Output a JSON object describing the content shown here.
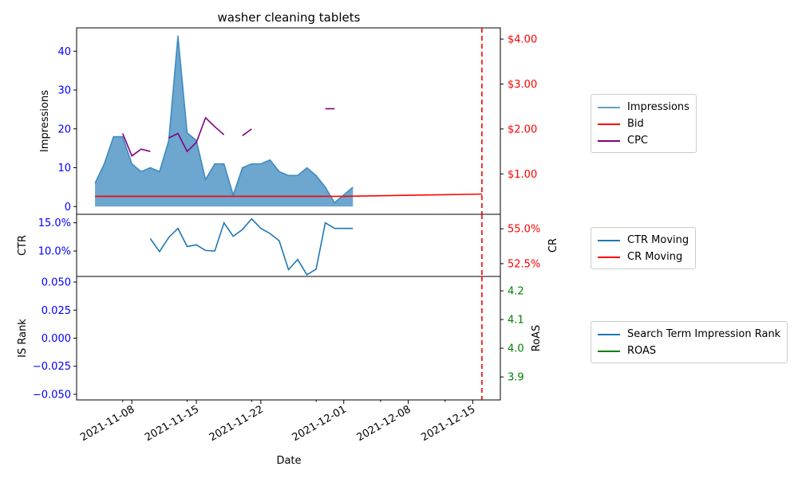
{
  "chart_data": {
    "type": "area",
    "title": "washer cleaning tablets",
    "xlabel": "Date",
    "x_ticks": [
      "2021-11-08",
      "2021-11-15",
      "2021-11-22",
      "2021-12-01",
      "2021-12-08",
      "2021-12-15"
    ],
    "x_range": [
      "2021-11-02",
      "2021-12-18"
    ],
    "vertical_marker_date": "2021-12-16",
    "panels": [
      {
        "ylabel": "Impressions",
        "y2label": "",
        "ylim": [
          -2,
          46
        ],
        "y_ticks": [
          0,
          10,
          20,
          30,
          40
        ],
        "y_tick_labels": [
          "0",
          "10",
          "20",
          "30",
          "40"
        ],
        "y2lim": [
          0.1,
          4.25
        ],
        "y2_ticks": [
          1,
          2,
          3,
          4
        ],
        "y2_tick_labels": [
          "$1.00",
          "$2.00",
          "$3.00",
          "$4.00"
        ],
        "series": [
          {
            "name": "Impressions",
            "kind": "area",
            "axis": "left",
            "color": "#1f77b4",
            "x": [
              "2021-11-04",
              "2021-11-05",
              "2021-11-06",
              "2021-11-07",
              "2021-11-08",
              "2021-11-09",
              "2021-11-10",
              "2021-11-11",
              "2021-11-12",
              "2021-11-13",
              "2021-11-14",
              "2021-11-15",
              "2021-11-16",
              "2021-11-17",
              "2021-11-18",
              "2021-11-19",
              "2021-11-20",
              "2021-11-21",
              "2021-11-22",
              "2021-11-23",
              "2021-11-24",
              "2021-11-25",
              "2021-11-26",
              "2021-11-27",
              "2021-11-28",
              "2021-11-29",
              "2021-11-30",
              "2021-12-01",
              "2021-12-02"
            ],
            "y": [
              6,
              11,
              18,
              18,
              11,
              9,
              10,
              9,
              17,
              44,
              19,
              17,
              7,
              11,
              11,
              3,
              10,
              11,
              11,
              12,
              9,
              8,
              8,
              10,
              8,
              5,
              1,
              3,
              5
            ]
          },
          {
            "name": "Bid",
            "kind": "line",
            "axis": "right",
            "color": "#ff0000",
            "x": [
              "2021-11-04",
              "2021-12-01",
              "2021-12-16"
            ],
            "y": [
              0.5,
              0.5,
              0.55
            ]
          },
          {
            "name": "CPC",
            "kind": "line",
            "axis": "right",
            "color": "#800080",
            "segments": [
              {
                "x": [
                  "2021-11-07",
                  "2021-11-08",
                  "2021-11-09",
                  "2021-11-10"
                ],
                "y": [
                  1.9,
                  1.4,
                  1.55,
                  1.5
                ]
              },
              {
                "x": [
                  "2021-11-12",
                  "2021-11-13",
                  "2021-11-14",
                  "2021-11-15",
                  "2021-11-16",
                  "2021-11-17",
                  "2021-11-18"
                ],
                "y": [
                  1.8,
                  1.9,
                  1.5,
                  1.7,
                  2.25,
                  2.05,
                  1.87
                ]
              },
              {
                "x": [
                  "2021-11-20",
                  "2021-11-21"
                ],
                "y": [
                  1.85,
                  2.0
                ]
              },
              {
                "x": [
                  "2021-11-29",
                  "2021-11-30"
                ],
                "y": [
                  2.45,
                  2.45
                ]
              }
            ]
          }
        ],
        "legend": [
          "Impressions",
          "Bid",
          "CPC"
        ]
      },
      {
        "ylabel": "CTR",
        "y2label": "CR",
        "ylim": [
          0.055,
          0.165
        ],
        "y_ticks": [
          0.1,
          0.15
        ],
        "y_tick_labels": [
          "10.0%",
          "15.0%"
        ],
        "y2lim": [
          0.5158,
          0.5604
        ],
        "y2_ticks": [
          0.525,
          0.55
        ],
        "y2_tick_labels": [
          "52.5%",
          "55.0%"
        ],
        "series": [
          {
            "name": "CTR Moving",
            "kind": "line",
            "axis": "left",
            "color": "#1f77b4",
            "x": [
              "2021-11-10",
              "2021-11-11",
              "2021-11-12",
              "2021-11-13",
              "2021-11-14",
              "2021-11-15",
              "2021-11-16",
              "2021-11-17",
              "2021-11-18",
              "2021-11-19",
              "2021-11-20",
              "2021-11-21",
              "2021-11-22",
              "2021-11-23",
              "2021-11-24",
              "2021-11-25",
              "2021-11-26",
              "2021-11-27",
              "2021-11-28",
              "2021-11-29",
              "2021-11-30",
              "2021-12-01",
              "2021-12-02"
            ],
            "y": [
              0.122,
              0.099,
              0.124,
              0.14,
              0.108,
              0.111,
              0.101,
              0.1,
              0.15,
              0.126,
              0.138,
              0.157,
              0.14,
              0.131,
              0.118,
              0.067,
              0.085,
              0.058,
              0.068,
              0.15,
              0.14,
              0.14,
              0.14
            ]
          },
          {
            "name": "CR Moving",
            "kind": "line",
            "axis": "right",
            "color": "#ff0000",
            "x": [],
            "y": []
          }
        ],
        "legend": [
          "CTR Moving",
          "CR Moving"
        ]
      },
      {
        "ylabel": "IS Rank",
        "y2label": "RoAS",
        "ylim": [
          -0.055,
          0.055
        ],
        "y_ticks": [
          -0.05,
          -0.025,
          0,
          0.025,
          0.05
        ],
        "y_tick_labels": [
          "−0.050",
          "−0.025",
          "0.000",
          "0.025",
          "0.050"
        ],
        "y2lim": [
          3.82,
          4.25
        ],
        "y2_ticks": [
          3.9,
          4.0,
          4.1,
          4.2
        ],
        "y2_tick_labels": [
          "3.9",
          "4.0",
          "4.1",
          "4.2"
        ],
        "series": [
          {
            "name": "Search Term Impression Rank",
            "kind": "line",
            "axis": "left",
            "color": "#1f77b4",
            "x": [],
            "y": []
          },
          {
            "name": "ROAS",
            "kind": "line",
            "axis": "right",
            "color": "#008000",
            "x": [],
            "y": []
          }
        ],
        "legend": [
          "Search Term Impression Rank",
          "ROAS"
        ]
      }
    ],
    "colors": {
      "left_axis": "#0000ff",
      "right_axis_1": "#ff0000",
      "right_axis_2": "#ff0000",
      "right_axis_3": "#008000",
      "marker": "#ff0000"
    },
    "grid": false,
    "legend_placement": "right, outside"
  }
}
